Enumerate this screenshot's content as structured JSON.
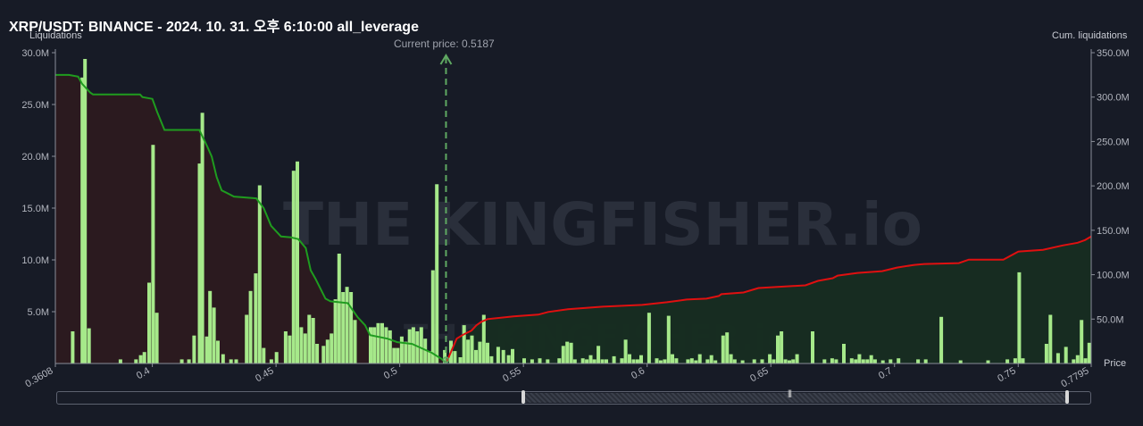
{
  "header": {
    "title": "XRP/USDT: BINANCE - 2024. 10. 31. 오후 6:10:00 all_leverage",
    "left_axis_label": "Liquidations",
    "right_axis_label": "Cum. liquidations",
    "price_label": "Price",
    "current_price_label": "Current price: 0.5187",
    "watermark": "THE KINGFISHER.io"
  },
  "colors": {
    "background": "#171b26",
    "bars": "#a6e98a",
    "cum_short_line": "#1f9c1f",
    "cum_long_line": "#e01010",
    "short_fill": "#2c1a1f",
    "long_fill": "#172d21",
    "current_price_line": "#5fa862"
  },
  "chart_data": {
    "type": "bar",
    "x_range": [
      0.3608,
      0.7795
    ],
    "current_price": 0.5187,
    "left_axis": {
      "label": "Liquidations",
      "ylim": [
        0,
        30000000
      ],
      "ticks": [
        "5.0M",
        "10.0M",
        "15.0M",
        "20.0M",
        "25.0M",
        "30.0M"
      ]
    },
    "right_axis": {
      "label": "Cum. liquidations",
      "ylim": [
        0,
        350000000
      ],
      "ticks": [
        "50.0M",
        "100.0M",
        "150.0M",
        "200.0M",
        "250.0M",
        "300.0M",
        "350.0M"
      ]
    },
    "x_ticks": [
      "0.3608",
      "0.4",
      "0.45",
      "0.5",
      "0.55",
      "0.6",
      "0.65",
      "0.7",
      "0.75",
      "0.7795"
    ],
    "bars": [
      [
        0.3678,
        3.1
      ],
      [
        0.3717,
        27.6
      ],
      [
        0.3728,
        29.4
      ],
      [
        0.3744,
        3.4
      ],
      [
        0.3871,
        0.4
      ],
      [
        0.3934,
        0.4
      ],
      [
        0.3953,
        0.8
      ],
      [
        0.3968,
        1.1
      ],
      [
        0.3987,
        7.8
      ],
      [
        0.4003,
        21.1
      ],
      [
        0.4018,
        4.9
      ],
      [
        0.4119,
        0.4
      ],
      [
        0.4148,
        0.4
      ],
      [
        0.4169,
        2.7
      ],
      [
        0.4191,
        19.3
      ],
      [
        0.4202,
        24.2
      ],
      [
        0.422,
        2.6
      ],
      [
        0.4233,
        7.0
      ],
      [
        0.4249,
        5.4
      ],
      [
        0.4265,
        2.2
      ],
      [
        0.4286,
        0.9
      ],
      [
        0.4318,
        0.4
      ],
      [
        0.4339,
        0.4
      ],
      [
        0.4381,
        4.7
      ],
      [
        0.4397,
        7.0
      ],
      [
        0.4418,
        8.7
      ],
      [
        0.4434,
        17.2
      ],
      [
        0.445,
        1.5
      ],
      [
        0.4481,
        0.4
      ],
      [
        0.4502,
        1.1
      ],
      [
        0.4539,
        3.1
      ],
      [
        0.4555,
        2.7
      ],
      [
        0.4571,
        18.6
      ],
      [
        0.4586,
        19.5
      ],
      [
        0.4602,
        3.5
      ],
      [
        0.4618,
        2.9
      ],
      [
        0.4634,
        4.7
      ],
      [
        0.465,
        4.4
      ],
      [
        0.4666,
        1.9
      ],
      [
        0.4692,
        1.7
      ],
      [
        0.4708,
        2.3
      ],
      [
        0.4724,
        2.9
      ],
      [
        0.474,
        6.2
      ],
      [
        0.4755,
        10.6
      ],
      [
        0.4771,
        6.9
      ],
      [
        0.4787,
        7.4
      ],
      [
        0.4803,
        6.9
      ],
      [
        0.4819,
        4.2
      ],
      [
        0.4882,
        3.5
      ],
      [
        0.4897,
        3.5
      ],
      [
        0.4913,
        3.9
      ],
      [
        0.4929,
        3.9
      ],
      [
        0.4945,
        3.5
      ],
      [
        0.4961,
        3.2
      ],
      [
        0.4977,
        1.5
      ],
      [
        0.4992,
        1.5
      ],
      [
        0.5008,
        2.6
      ],
      [
        0.5024,
        2.1
      ],
      [
        0.504,
        3.3
      ],
      [
        0.5055,
        3.5
      ],
      [
        0.5071,
        3.1
      ],
      [
        0.5087,
        3.5
      ],
      [
        0.5103,
        2.4
      ],
      [
        0.5119,
        1.2
      ],
      [
        0.5134,
        9.0
      ],
      [
        0.515,
        17.3
      ],
      [
        0.5182,
        1.3
      ],
      [
        0.5207,
        2.2
      ],
      [
        0.5223,
        1.2
      ],
      [
        0.5245,
        0.6
      ],
      [
        0.526,
        3.7
      ],
      [
        0.5276,
        2.3
      ],
      [
        0.5292,
        2.7
      ],
      [
        0.5308,
        1.3
      ],
      [
        0.5324,
        2.1
      ],
      [
        0.534,
        4.7
      ],
      [
        0.5355,
        2.0
      ],
      [
        0.5371,
        0.7
      ],
      [
        0.5398,
        1.6
      ],
      [
        0.5419,
        1.3
      ],
      [
        0.544,
        0.8
      ],
      [
        0.5456,
        1.4
      ],
      [
        0.5503,
        0.5
      ],
      [
        0.5535,
        0.4
      ],
      [
        0.5566,
        0.5
      ],
      [
        0.5598,
        0.4
      ],
      [
        0.5645,
        0.5
      ],
      [
        0.5661,
        1.7
      ],
      [
        0.5677,
        2.1
      ],
      [
        0.5693,
        2.0
      ],
      [
        0.5708,
        0.4
      ],
      [
        0.574,
        0.5
      ],
      [
        0.5756,
        0.4
      ],
      [
        0.5772,
        0.8
      ],
      [
        0.5787,
        0.4
      ],
      [
        0.5803,
        1.7
      ],
      [
        0.5819,
        0.4
      ],
      [
        0.5835,
        0.4
      ],
      [
        0.5866,
        0.7
      ],
      [
        0.5898,
        0.5
      ],
      [
        0.5913,
        2.3
      ],
      [
        0.5929,
        0.9
      ],
      [
        0.5945,
        0.4
      ],
      [
        0.5961,
        0.4
      ],
      [
        0.5976,
        0.8
      ],
      [
        0.6008,
        4.9
      ],
      [
        0.6039,
        0.5
      ],
      [
        0.6055,
        0.3
      ],
      [
        0.6071,
        0.4
      ],
      [
        0.6087,
        4.6
      ],
      [
        0.6102,
        0.9
      ],
      [
        0.6118,
        0.5
      ],
      [
        0.6165,
        0.4
      ],
      [
        0.6181,
        0.5
      ],
      [
        0.6197,
        0.3
      ],
      [
        0.6213,
        0.9
      ],
      [
        0.6244,
        0.4
      ],
      [
        0.626,
        0.8
      ],
      [
        0.6276,
        0.3
      ],
      [
        0.6307,
        2.7
      ],
      [
        0.6323,
        3.0
      ],
      [
        0.6339,
        0.9
      ],
      [
        0.6354,
        0.4
      ],
      [
        0.6386,
        0.3
      ],
      [
        0.6433,
        0.4
      ],
      [
        0.6465,
        0.4
      ],
      [
        0.6496,
        0.9
      ],
      [
        0.6512,
        0.4
      ],
      [
        0.6528,
        2.7
      ],
      [
        0.6543,
        3.1
      ],
      [
        0.6559,
        0.4
      ],
      [
        0.6575,
        0.3
      ],
      [
        0.659,
        0.4
      ],
      [
        0.6606,
        0.9
      ],
      [
        0.6669,
        3.1
      ],
      [
        0.6717,
        0.4
      ],
      [
        0.6748,
        0.5
      ],
      [
        0.6764,
        0.4
      ],
      [
        0.6795,
        1.9
      ],
      [
        0.6827,
        0.5
      ],
      [
        0.6843,
        0.4
      ],
      [
        0.6858,
        0.9
      ],
      [
        0.6874,
        0.4
      ],
      [
        0.689,
        0.4
      ],
      [
        0.6906,
        0.8
      ],
      [
        0.6921,
        0.4
      ],
      [
        0.6953,
        0.3
      ],
      [
        0.6984,
        0.4
      ],
      [
        0.7016,
        0.5
      ],
      [
        0.7095,
        0.4
      ],
      [
        0.7126,
        0.4
      ],
      [
        0.7189,
        4.5
      ],
      [
        0.7267,
        0.3
      ],
      [
        0.7378,
        0.3
      ],
      [
        0.7456,
        0.4
      ],
      [
        0.7488,
        0.5
      ],
      [
        0.7504,
        8.8
      ],
      [
        0.7519,
        0.5
      ],
      [
        0.7614,
        1.9
      ],
      [
        0.763,
        4.7
      ],
      [
        0.7661,
        1.0
      ],
      [
        0.7693,
        1.6
      ],
      [
        0.7724,
        0.4
      ],
      [
        0.774,
        0.8
      ],
      [
        0.7756,
        4.2
      ],
      [
        0.7772,
        0.5
      ],
      [
        0.7787,
        2.0
      ]
    ],
    "cum_short": [
      [
        0.3608,
        325
      ],
      [
        0.3663,
        325
      ],
      [
        0.37,
        323
      ],
      [
        0.3716,
        315
      ],
      [
        0.3749,
        305
      ],
      [
        0.376,
        303
      ],
      [
        0.395,
        303
      ],
      [
        0.396,
        300
      ],
      [
        0.4,
        298
      ],
      [
        0.402,
        283
      ],
      [
        0.4049,
        263
      ],
      [
        0.419,
        263
      ],
      [
        0.4221,
        245
      ],
      [
        0.424,
        233
      ],
      [
        0.426,
        210
      ],
      [
        0.428,
        195
      ],
      [
        0.433,
        188
      ],
      [
        0.442,
        186
      ],
      [
        0.445,
        175
      ],
      [
        0.448,
        155
      ],
      [
        0.452,
        143
      ],
      [
        0.456,
        142
      ],
      [
        0.459,
        140
      ],
      [
        0.462,
        130
      ],
      [
        0.464,
        105
      ],
      [
        0.466,
        95
      ],
      [
        0.47,
        73
      ],
      [
        0.472,
        70
      ],
      [
        0.479,
        68
      ],
      [
        0.481,
        60
      ],
      [
        0.483,
        52
      ],
      [
        0.486,
        43
      ],
      [
        0.488,
        32
      ],
      [
        0.495,
        28
      ],
      [
        0.499,
        24
      ],
      [
        0.505,
        22
      ],
      [
        0.509,
        17
      ],
      [
        0.513,
        12
      ],
      [
        0.517,
        5
      ],
      [
        0.5187,
        0
      ]
    ],
    "cum_long": [
      [
        0.5187,
        0
      ],
      [
        0.523,
        28
      ],
      [
        0.526,
        33
      ],
      [
        0.529,
        37
      ],
      [
        0.531,
        43
      ],
      [
        0.533,
        47
      ],
      [
        0.5355,
        50
      ],
      [
        0.546,
        53
      ],
      [
        0.556,
        55
      ],
      [
        0.56,
        58
      ],
      [
        0.568,
        61
      ],
      [
        0.582,
        64
      ],
      [
        0.598,
        66
      ],
      [
        0.608,
        69
      ],
      [
        0.616,
        72
      ],
      [
        0.624,
        73
      ],
      [
        0.629,
        76
      ],
      [
        0.63,
        78
      ],
      [
        0.639,
        80
      ],
      [
        0.645,
        85
      ],
      [
        0.664,
        88
      ],
      [
        0.669,
        93
      ],
      [
        0.675,
        96
      ],
      [
        0.677,
        99
      ],
      [
        0.685,
        102
      ],
      [
        0.695,
        104
      ],
      [
        0.701,
        108
      ],
      [
        0.708,
        111
      ],
      [
        0.712,
        112
      ],
      [
        0.726,
        113
      ],
      [
        0.73,
        117
      ],
      [
        0.744,
        117
      ],
      [
        0.75,
        126
      ],
      [
        0.76,
        128
      ],
      [
        0.768,
        133
      ],
      [
        0.77,
        134
      ],
      [
        0.774,
        136
      ],
      [
        0.777,
        139
      ],
      [
        0.7795,
        143
      ]
    ]
  }
}
